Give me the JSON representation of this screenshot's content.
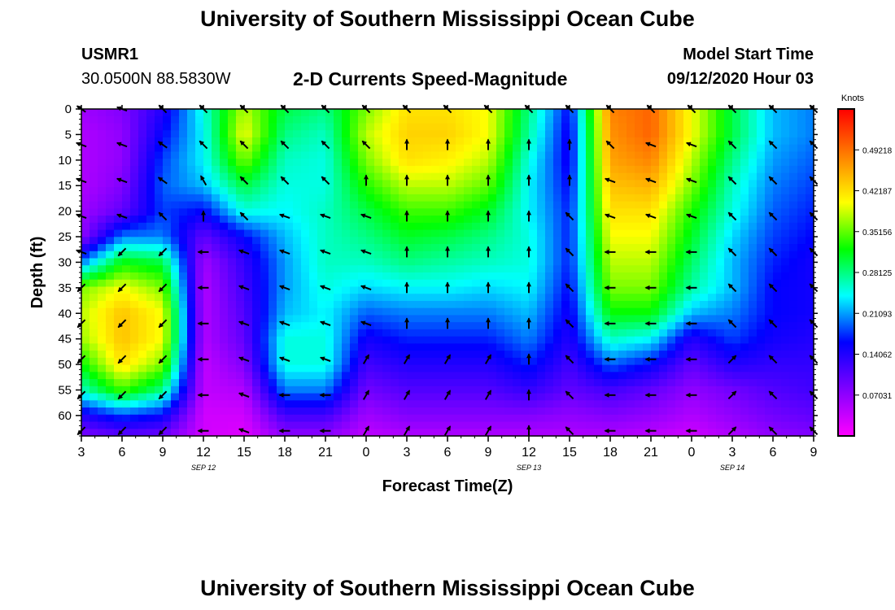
{
  "header": {
    "title": "University of Southern Mississippi Ocean Cube",
    "station_id": "USMR1",
    "station_coords": "30.0500N 88.5830W",
    "plot_title": "2-D Currents Speed-Magnitude",
    "model_start_label": "Model Start Time",
    "model_start_value": "09/12/2020 Hour 03"
  },
  "footer": {
    "title": "University of Southern Mississippi Ocean Cube"
  },
  "chart_data": {
    "type": "heatmap",
    "title": "2-D Currents Speed-Magnitude",
    "xlabel": "Forecast Time(Z)",
    "ylabel": "Depth (ft)",
    "x_tick_labels": [
      "3",
      "6",
      "9",
      "12",
      "15",
      "18",
      "21",
      "0",
      "3",
      "6",
      "9",
      "12",
      "15",
      "18",
      "21",
      "0",
      "3",
      "6",
      "9"
    ],
    "x_hours": [
      3,
      6,
      9,
      12,
      15,
      18,
      21,
      24,
      27,
      30,
      33,
      36,
      39,
      42,
      45,
      48,
      51,
      54,
      57
    ],
    "date_labels": [
      {
        "label": "SEP 12",
        "hour": 12
      },
      {
        "label": "SEP 13",
        "hour": 36
      },
      {
        "label": "SEP 14",
        "hour": 51
      }
    ],
    "depth_range": [
      0,
      64
    ],
    "depth_ticks": [
      0,
      5,
      10,
      15,
      20,
      25,
      30,
      35,
      40,
      45,
      50,
      55,
      60
    ],
    "time_range": [
      3,
      57
    ],
    "colorbar": {
      "unit": "Knots",
      "range": [
        0,
        0.5625
      ],
      "tick_labels": [
        "0.49218",
        "0.42187",
        "0.35156",
        "0.28125",
        "0.21093",
        "0.14062",
        "0.07031"
      ],
      "tick_values": [
        0.49218,
        0.42187,
        0.35156,
        0.28125,
        0.21093,
        0.14062,
        0.07031
      ],
      "colors": [
        "#ff00ff",
        "#8000ff",
        "#0000ff",
        "#00ffff",
        "#00ff00",
        "#ffff00",
        "#ff8000",
        "#ff0000"
      ]
    },
    "speed_grid": {
      "hours": [
        3,
        6,
        9,
        12,
        15,
        18,
        21,
        24,
        27,
        30,
        33,
        36,
        39,
        42,
        45,
        48,
        51,
        54,
        57
      ],
      "depths": [
        0,
        5,
        10,
        15,
        20,
        25,
        30,
        35,
        40,
        45,
        50,
        55,
        60,
        64
      ],
      "values": [
        [
          0.06,
          0.08,
          0.14,
          0.25,
          0.38,
          0.3,
          0.28,
          0.36,
          0.42,
          0.42,
          0.4,
          0.28,
          0.16,
          0.48,
          0.5,
          0.4,
          0.3,
          0.22,
          0.2
        ],
        [
          0.05,
          0.07,
          0.16,
          0.24,
          0.4,
          0.28,
          0.26,
          0.38,
          0.43,
          0.43,
          0.4,
          0.27,
          0.15,
          0.47,
          0.5,
          0.4,
          0.3,
          0.22,
          0.2
        ],
        [
          0.05,
          0.07,
          0.18,
          0.24,
          0.36,
          0.26,
          0.25,
          0.36,
          0.42,
          0.41,
          0.38,
          0.25,
          0.15,
          0.46,
          0.48,
          0.38,
          0.28,
          0.21,
          0.19
        ],
        [
          0.05,
          0.08,
          0.19,
          0.22,
          0.3,
          0.25,
          0.25,
          0.33,
          0.38,
          0.38,
          0.35,
          0.24,
          0.16,
          0.44,
          0.45,
          0.36,
          0.26,
          0.2,
          0.18
        ],
        [
          0.06,
          0.1,
          0.18,
          0.16,
          0.25,
          0.24,
          0.26,
          0.3,
          0.34,
          0.34,
          0.31,
          0.24,
          0.17,
          0.42,
          0.42,
          0.33,
          0.25,
          0.19,
          0.17
        ],
        [
          0.07,
          0.2,
          0.2,
          0.1,
          0.16,
          0.22,
          0.26,
          0.28,
          0.31,
          0.3,
          0.28,
          0.25,
          0.17,
          0.4,
          0.4,
          0.31,
          0.23,
          0.18,
          0.16
        ],
        [
          0.2,
          0.32,
          0.3,
          0.06,
          0.13,
          0.21,
          0.26,
          0.26,
          0.28,
          0.27,
          0.26,
          0.25,
          0.17,
          0.38,
          0.38,
          0.29,
          0.22,
          0.17,
          0.15
        ],
        [
          0.36,
          0.4,
          0.36,
          0.05,
          0.12,
          0.21,
          0.25,
          0.23,
          0.24,
          0.24,
          0.23,
          0.24,
          0.16,
          0.36,
          0.36,
          0.27,
          0.22,
          0.16,
          0.15
        ],
        [
          0.38,
          0.44,
          0.4,
          0.05,
          0.11,
          0.22,
          0.24,
          0.19,
          0.2,
          0.2,
          0.2,
          0.22,
          0.15,
          0.32,
          0.32,
          0.22,
          0.2,
          0.16,
          0.15
        ],
        [
          0.37,
          0.44,
          0.4,
          0.05,
          0.1,
          0.25,
          0.25,
          0.15,
          0.17,
          0.17,
          0.17,
          0.2,
          0.14,
          0.26,
          0.24,
          0.14,
          0.18,
          0.15,
          0.14
        ],
        [
          0.32,
          0.42,
          0.36,
          0.04,
          0.08,
          0.25,
          0.25,
          0.12,
          0.14,
          0.14,
          0.14,
          0.17,
          0.12,
          0.19,
          0.16,
          0.1,
          0.14,
          0.13,
          0.13
        ],
        [
          0.26,
          0.34,
          0.28,
          0.04,
          0.05,
          0.2,
          0.2,
          0.09,
          0.11,
          0.11,
          0.11,
          0.13,
          0.1,
          0.12,
          0.1,
          0.07,
          0.09,
          0.11,
          0.12
        ],
        [
          0.14,
          0.18,
          0.16,
          0.03,
          0.03,
          0.12,
          0.12,
          0.06,
          0.08,
          0.08,
          0.08,
          0.08,
          0.07,
          0.08,
          0.07,
          0.05,
          0.07,
          0.09,
          0.1
        ],
        [
          0.08,
          0.1,
          0.09,
          0.03,
          0.02,
          0.07,
          0.07,
          0.04,
          0.05,
          0.05,
          0.05,
          0.05,
          0.05,
          0.05,
          0.04,
          0.03,
          0.05,
          0.07,
          0.08
        ]
      ]
    },
    "current_arrows": {
      "depths": [
        0,
        7,
        14,
        21,
        28,
        35,
        42,
        49,
        56,
        63
      ],
      "hours": [
        3,
        6,
        9,
        12,
        15,
        18,
        21,
        24,
        27,
        30,
        33,
        36,
        39,
        42,
        45,
        48,
        51,
        54,
        57
      ],
      "directions_deg": [
        [
          215,
          200,
          225,
          225,
          225,
          225,
          225,
          225,
          225,
          225,
          225,
          225,
          225,
          225,
          225,
          225,
          225,
          225,
          225
        ],
        [
          200,
          200,
          215,
          225,
          225,
          225,
          225,
          225,
          270,
          270,
          270,
          270,
          270,
          225,
          200,
          200,
          225,
          225,
          225
        ],
        [
          200,
          200,
          215,
          240,
          225,
          225,
          225,
          270,
          270,
          270,
          270,
          270,
          270,
          200,
          200,
          200,
          225,
          225,
          225
        ],
        [
          200,
          200,
          225,
          270,
          225,
          200,
          200,
          200,
          270,
          270,
          270,
          270,
          225,
          200,
          200,
          200,
          225,
          225,
          225
        ],
        [
          200,
          135,
          135,
          180,
          200,
          200,
          200,
          200,
          270,
          270,
          270,
          270,
          225,
          180,
          180,
          180,
          225,
          225,
          225
        ],
        [
          135,
          135,
          135,
          180,
          200,
          200,
          200,
          200,
          270,
          270,
          270,
          270,
          225,
          180,
          180,
          180,
          225,
          225,
          225
        ],
        [
          135,
          135,
          135,
          180,
          200,
          200,
          200,
          200,
          270,
          270,
          270,
          270,
          225,
          180,
          180,
          180,
          225,
          225,
          225
        ],
        [
          135,
          135,
          135,
          180,
          200,
          200,
          200,
          300,
          300,
          300,
          300,
          270,
          225,
          180,
          180,
          180,
          315,
          225,
          225
        ],
        [
          135,
          135,
          135,
          180,
          200,
          180,
          180,
          300,
          300,
          300,
          300,
          270,
          225,
          180,
          180,
          180,
          315,
          225,
          225
        ],
        [
          135,
          135,
          135,
          180,
          200,
          180,
          180,
          300,
          300,
          300,
          300,
          270,
          225,
          180,
          180,
          180,
          315,
          225,
          225
        ]
      ]
    }
  }
}
